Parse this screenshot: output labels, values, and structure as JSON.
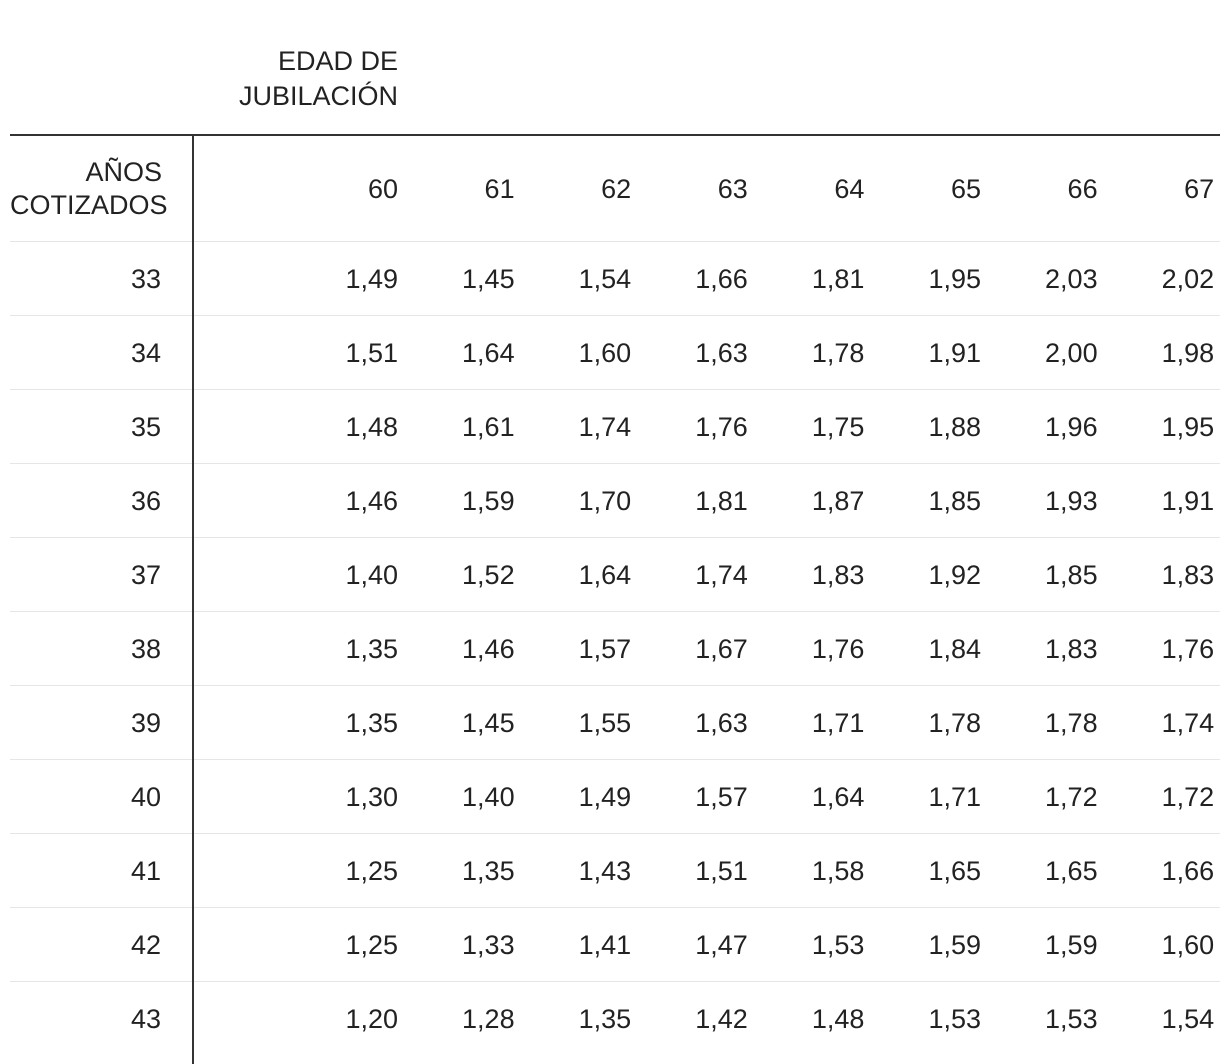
{
  "table": {
    "super_header": "EDAD DE\nJUBILACIÓN",
    "row_header_label": "AÑOS\nCOTIZADOS",
    "columns": [
      "60",
      "61",
      "62",
      "63",
      "64",
      "65",
      "66",
      "67"
    ],
    "rows": [
      {
        "label": "33",
        "values": [
          "1,49",
          "1,45",
          "1,54",
          "1,66",
          "1,81",
          "1,95",
          "2,03",
          "2,02"
        ]
      },
      {
        "label": "34",
        "values": [
          "1,51",
          "1,64",
          "1,60",
          "1,63",
          "1,78",
          "1,91",
          "2,00",
          "1,98"
        ]
      },
      {
        "label": "35",
        "values": [
          "1,48",
          "1,61",
          "1,74",
          "1,76",
          "1,75",
          "1,88",
          "1,96",
          "1,95"
        ]
      },
      {
        "label": "36",
        "values": [
          "1,46",
          "1,59",
          "1,70",
          "1,81",
          "1,87",
          "1,85",
          "1,93",
          "1,91"
        ]
      },
      {
        "label": "37",
        "values": [
          "1,40",
          "1,52",
          "1,64",
          "1,74",
          "1,83",
          "1,92",
          "1,85",
          "1,83"
        ]
      },
      {
        "label": "38",
        "values": [
          "1,35",
          "1,46",
          "1,57",
          "1,67",
          "1,76",
          "1,84",
          "1,83",
          "1,76"
        ]
      },
      {
        "label": "39",
        "values": [
          "1,35",
          "1,45",
          "1,55",
          "1,63",
          "1,71",
          "1,78",
          "1,78",
          "1,74"
        ]
      },
      {
        "label": "40",
        "values": [
          "1,30",
          "1,40",
          "1,49",
          "1,57",
          "1,64",
          "1,71",
          "1,72",
          "1,72"
        ]
      },
      {
        "label": "41",
        "values": [
          "1,25",
          "1,35",
          "1,43",
          "1,51",
          "1,58",
          "1,65",
          "1,65",
          "1,66"
        ]
      },
      {
        "label": "42",
        "values": [
          "1,25",
          "1,33",
          "1,41",
          "1,47",
          "1,53",
          "1,59",
          "1,59",
          "1,60"
        ]
      },
      {
        "label": "43",
        "values": [
          "1,20",
          "1,28",
          "1,35",
          "1,42",
          "1,48",
          "1,53",
          "1,53",
          "1,54"
        ]
      }
    ]
  }
}
